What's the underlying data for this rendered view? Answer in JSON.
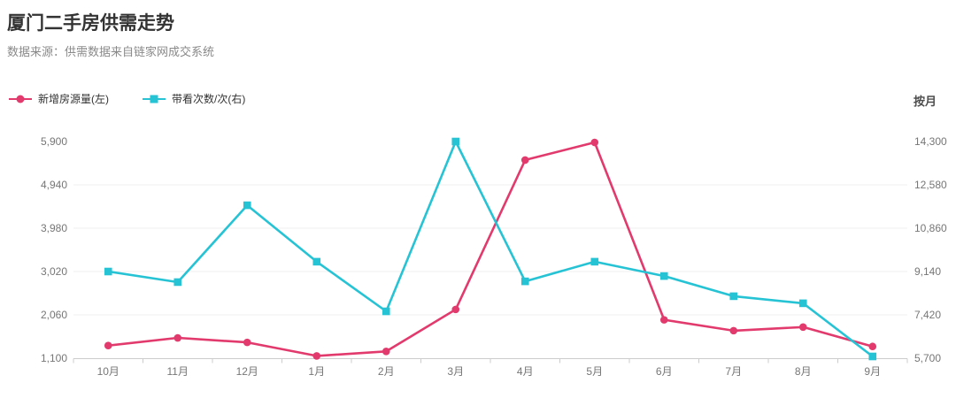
{
  "header": {
    "title": "厦门二手房供需走势",
    "subtitle": "数据来源：供需数据来自链家网成交系统",
    "period_label": "按月"
  },
  "colors": {
    "series_pink": "#e23a6d",
    "series_cyan": "#26c3d5",
    "grid_line": "#efefef",
    "axis_line": "#cccccc",
    "axis_text": "#767676",
    "title_text": "#333333",
    "subtitle_text": "#898989"
  },
  "legend": {
    "items": [
      {
        "label": "新增房源量(左)",
        "color": "#e23a6d",
        "marker": "circle"
      },
      {
        "label": "带看次数/次(右)",
        "color": "#26c3d5",
        "marker": "square"
      }
    ]
  },
  "chart_data": {
    "type": "line",
    "title": "厦门二手房供需走势",
    "categories": [
      "10月",
      "11月",
      "12月",
      "1月",
      "2月",
      "3月",
      "4月",
      "5月",
      "6月",
      "7月",
      "8月",
      "9月"
    ],
    "series": [
      {
        "name": "新增房源量(左)",
        "axis": "left",
        "color": "#e23a6d",
        "marker": "circle",
        "values": [
          1380,
          1550,
          1450,
          1150,
          1250,
          2180,
          5490,
          5880,
          1950,
          1710,
          1790,
          1360
        ]
      },
      {
        "name": "带看次数/次(右)",
        "axis": "right",
        "color": "#26c3d5",
        "marker": "square",
        "values": [
          9140,
          8720,
          11770,
          9530,
          7560,
          14300,
          8750,
          9530,
          8960,
          8160,
          7880,
          5770
        ]
      }
    ],
    "left_axis": {
      "tick_labels": [
        "5,900",
        "4,940",
        "3,980",
        "3,020",
        "2,060",
        "1,100"
      ],
      "min": 1100,
      "max": 5900
    },
    "right_axis": {
      "tick_labels": [
        "14,300",
        "12,580",
        "10,860",
        "9,140",
        "7,420",
        "5,700"
      ],
      "min": 5700,
      "max": 14300
    },
    "x_unit": "按月",
    "grid": true,
    "legend_position": "top-left"
  }
}
